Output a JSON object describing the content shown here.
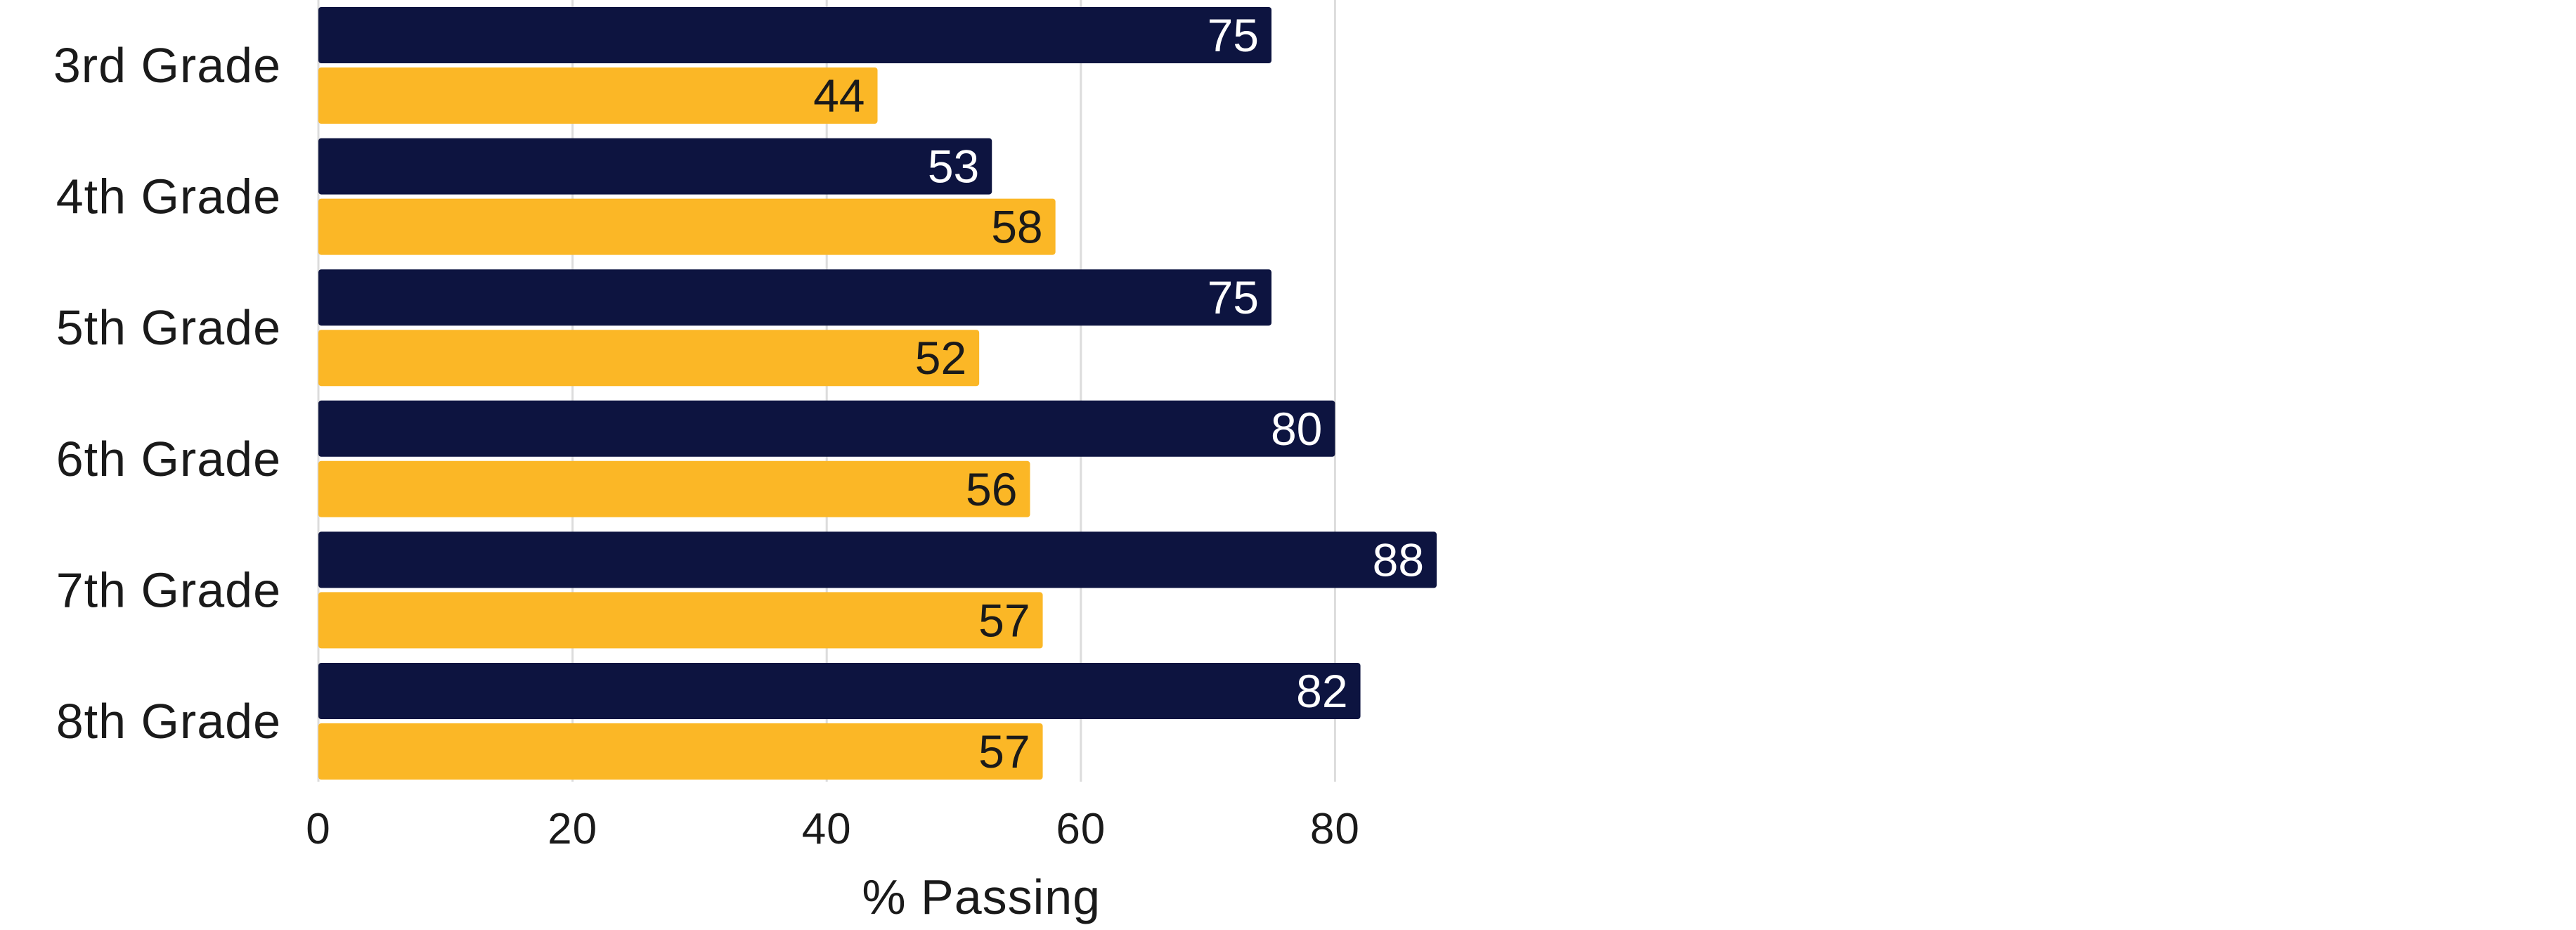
{
  "chart_data": {
    "type": "bar",
    "orientation": "horizontal",
    "categories": [
      "3rd Grade",
      "4th Grade",
      "5th Grade",
      "6th Grade",
      "7th Grade",
      "8th Grade"
    ],
    "series": [
      {
        "values": [
          75,
          53,
          75,
          80,
          88,
          82
        ],
        "color": "#0d1440",
        "label_color": "#ffffff"
      },
      {
        "values": [
          44,
          58,
          52,
          56,
          57,
          57
        ],
        "color": "#fbb726",
        "label_color": "#1a1a1a"
      }
    ],
    "xlabel": "% Passing",
    "ylabel": "",
    "xlim": [
      0,
      88
    ],
    "xticks": [
      "0",
      "20",
      "40",
      "60",
      "80"
    ],
    "grid": true,
    "legend": "none",
    "data_labels": "inside-end"
  }
}
